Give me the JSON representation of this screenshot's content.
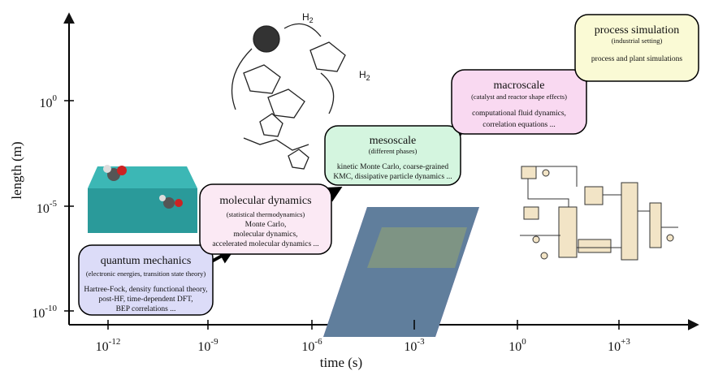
{
  "axes": {
    "y_label": "length (m)",
    "x_label": "time (s)",
    "y_ticks": [
      {
        "base": "10",
        "exp": "0"
      },
      {
        "base": "10",
        "exp": "-5"
      },
      {
        "base": "10",
        "exp": "-10"
      }
    ],
    "x_ticks": [
      {
        "base": "10",
        "exp": "-12"
      },
      {
        "base": "10",
        "exp": "-9"
      },
      {
        "base": "10",
        "exp": "-6"
      },
      {
        "base": "10",
        "exp": "-3"
      },
      {
        "base": "10",
        "exp": "0"
      },
      {
        "base": "10",
        "exp": "+3"
      }
    ]
  },
  "boxes": [
    {
      "title": "quantum mechanics",
      "subtitle": "(electronic energies, transition state theory)",
      "lines": [
        "Hartree-Fock, density functional theory,",
        "post-HF, time-dependent DFT,",
        "BEP correlations ..."
      ]
    },
    {
      "title": "molecular dynamics",
      "subtitle": "(statistical thermodynamics)",
      "lines": [
        "Monte Carlo,",
        "molecular dynamics,",
        "accelerated molecular dynamics ..."
      ]
    },
    {
      "title": "mesoscale",
      "subtitle": "(different phases)",
      "lines": [
        "kinetic Monte Carlo, coarse-grained",
        "KMC, dissipative particle dynamics ..."
      ]
    },
    {
      "title": "macroscale",
      "subtitle": "(catalyst and reactor shape effects)",
      "lines": [
        "computational fluid dynamics,",
        "correlation equations ..."
      ]
    },
    {
      "title": "process simulation",
      "subtitle": "(industrial setting)",
      "lines": [
        "process and plant simulations"
      ]
    }
  ],
  "labels": [
    {
      "base": "H",
      "sub": "2"
    },
    {
      "base": "H",
      "sub": "2"
    }
  ]
}
